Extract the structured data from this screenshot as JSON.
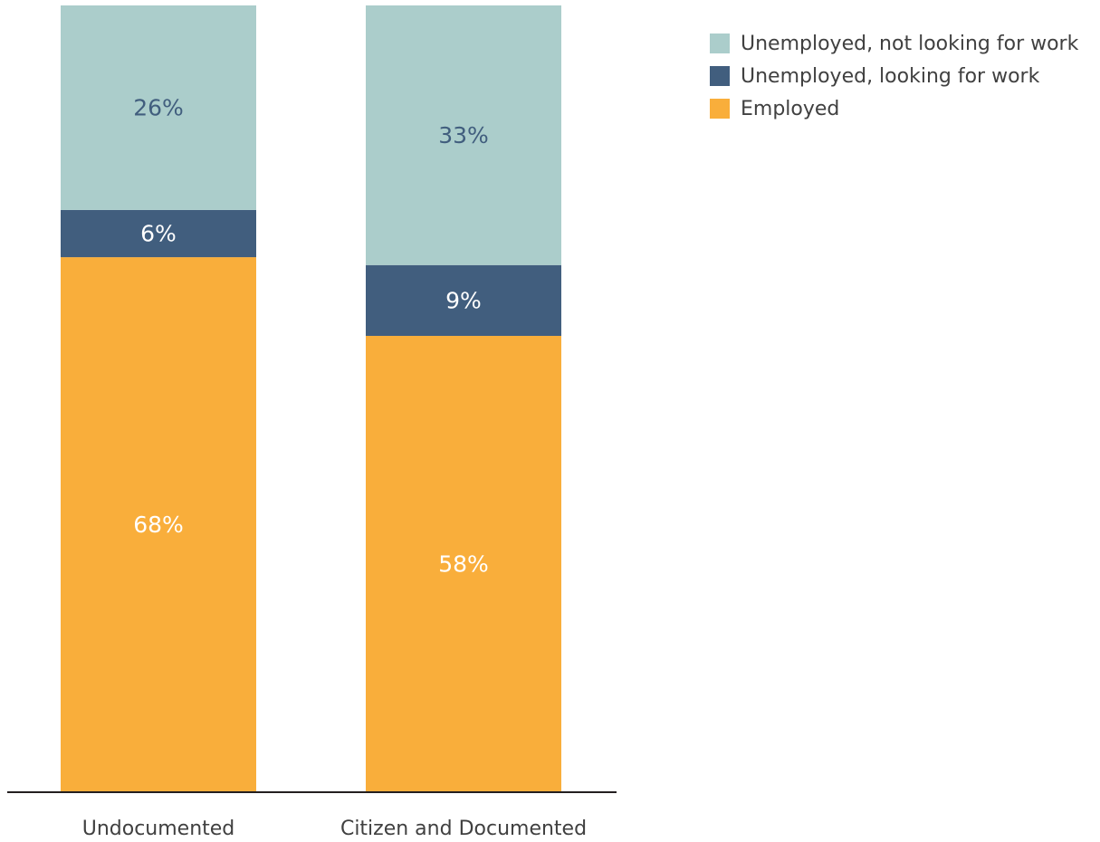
{
  "chart_data": {
    "type": "bar",
    "stacked": true,
    "categories": [
      "Undocumented",
      "Citizen and Documented"
    ],
    "series": [
      {
        "name": "Employed",
        "values": [
          68,
          58
        ],
        "labels": [
          "68%",
          "58%"
        ],
        "color": "#f9ae3b",
        "label_color": "#ffffff"
      },
      {
        "name": "Unemployed, looking for work",
        "values": [
          6,
          9
        ],
        "labels": [
          "6%",
          "9%"
        ],
        "color": "#415e7e",
        "label_color": "#ffffff"
      },
      {
        "name": "Unemployed, not looking for work",
        "values": [
          26,
          33
        ],
        "labels": [
          "26%",
          "33%"
        ],
        "color": "#abcdcb",
        "label_color": "#415e7e"
      }
    ],
    "legend_order": [
      {
        "name": "Unemployed, not looking for work",
        "color": "#abcdcb"
      },
      {
        "name": "Unemployed, looking for work",
        "color": "#415e7e"
      },
      {
        "name": "Employed",
        "color": "#f9ae3b"
      }
    ],
    "legend_position": "top-right",
    "ylim": [
      0,
      100
    ],
    "grid": false,
    "title": "",
    "xlabel": "",
    "ylabel": ""
  }
}
